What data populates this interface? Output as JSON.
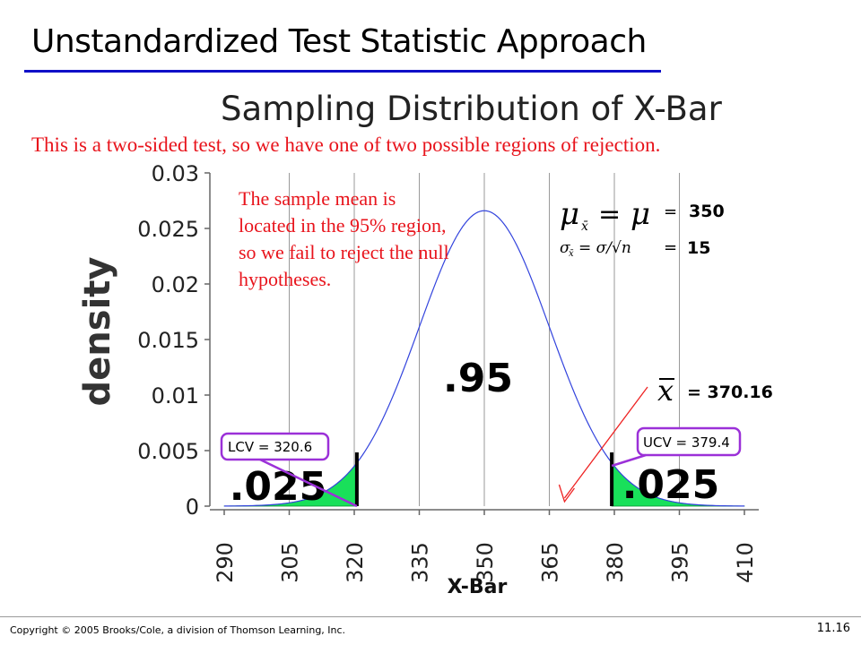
{
  "slide": {
    "title": "Unstandardized Test Statistic Approach",
    "note_top": "This is a two-sided test, so we have one of two possible regions of rejection.",
    "note_mid": "The sample mean is located in the 95% region, so we fail to reject the null hypotheses.",
    "footer_copyright": "Copyright © 2005 Brooks/Cole, a division of Thomson Learning, Inc.",
    "page_number": "11.16"
  },
  "chart_data": {
    "type": "area",
    "title": "Sampling Distribution of X-Bar",
    "xlabel": "X-Bar",
    "ylabel": "density",
    "xlim": [
      290,
      410
    ],
    "ylim": [
      0,
      0.03
    ],
    "x_ticks": [
      "290",
      "305",
      "320",
      "335",
      "350",
      "365",
      "380",
      "395",
      "410"
    ],
    "y_ticks": [
      "0",
      "0.005",
      "0.01",
      "0.015",
      "0.02",
      "0.025",
      "0.03"
    ],
    "grid": true,
    "distribution": {
      "family": "normal",
      "mean": 350,
      "sd": 15
    },
    "regions": [
      {
        "label": ".025",
        "from": 290,
        "to": 320.6,
        "color": "#19e05a"
      },
      {
        "label": ".95",
        "from": 320.6,
        "to": 379.4,
        "color": "#ffffff"
      },
      {
        "label": ".025",
        "from": 379.4,
        "to": 410,
        "color": "#19e05a"
      }
    ],
    "critical_values": [
      {
        "label": "LCV = 320.6",
        "value": 320.6
      },
      {
        "label": "UCV = 379.4",
        "value": 379.4
      }
    ],
    "sample_mean": {
      "value": 370.16,
      "value_text": "= 370.16"
    },
    "parameters": {
      "mu_value": "350",
      "sigma_value": "15"
    },
    "colors": {
      "curve": "#3344dd",
      "callout": "#9b30d8",
      "arrow": "#ee2222",
      "tail": "#19e05a"
    }
  }
}
